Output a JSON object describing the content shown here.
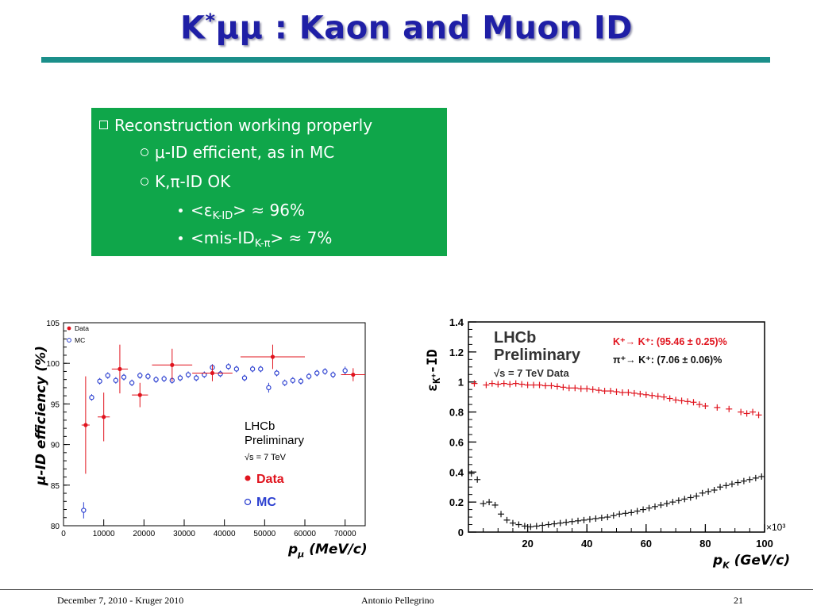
{
  "slide": {
    "title_main": "K",
    "title_sup": "*",
    "title_rest": "μμ : Kaon and Muon ID"
  },
  "bullets": {
    "b1": "Reconstruction working properly",
    "b2": "μ-ID efficient, as in MC",
    "b3": "K,π-ID OK",
    "b4_pre": "<ε",
    "b4_sub": "K-ID",
    "b4_post": "> ≈ 96%",
    "b5_pre": "<mis-ID",
    "b5_sub": "K-π",
    "b5_post": "> ≈ 7%"
  },
  "footer": {
    "left": "December 7, 2010 - Kruger 2010",
    "center": "Antonio Pellegrino",
    "right": "21"
  },
  "chart_data": [
    {
      "type": "scatter",
      "ylabel": "μ-ID efficiency (%)",
      "xlabel_main": "p",
      "xlabel_sub": "μ",
      "xlabel_rest": " (MeV/c)",
      "xlim": [
        0,
        75000
      ],
      "ylim": [
        80,
        105
      ],
      "xticks": [
        0,
        10000,
        20000,
        30000,
        40000,
        50000,
        60000,
        70000
      ],
      "yticks": [
        80,
        85,
        90,
        95,
        100,
        105
      ],
      "legend": [
        "Data",
        "MC"
      ],
      "annotation": [
        "LHCb",
        "Preliminary",
        "√s = 7 TeV"
      ],
      "overlay_legend": [
        "Data",
        "MC"
      ],
      "colors": {
        "Data": "#e0141e",
        "MC": "#2b3fd0"
      },
      "series": [
        {
          "name": "Data",
          "x": [
            5500,
            10000,
            14000,
            19000,
            27000,
            37000,
            52000,
            72000
          ],
          "y": [
            92.4,
            93.4,
            99.3,
            96.1,
            99.8,
            98.8,
            100.8,
            98.6
          ],
          "yerr": [
            6,
            3,
            3,
            1.5,
            2,
            1,
            1.5,
            0.8
          ],
          "xerr": [
            1000,
            1500,
            2000,
            2000,
            5000,
            5000,
            8000,
            3000
          ]
        },
        {
          "name": "MC",
          "x": [
            5000,
            7000,
            9000,
            11000,
            13000,
            15000,
            17000,
            19000,
            21000,
            23000,
            25000,
            27000,
            29000,
            31000,
            33000,
            35000,
            37000,
            39000,
            41000,
            43000,
            45000,
            47000,
            49000,
            51000,
            53000,
            55000,
            57000,
            59000,
            61000,
            63000,
            65000,
            67000,
            70000
          ],
          "y": [
            81.9,
            95.8,
            97.8,
            98.5,
            97.9,
            98.3,
            97.6,
            98.5,
            98.4,
            98.0,
            98.1,
            97.9,
            98.2,
            98.6,
            98.2,
            98.6,
            99.5,
            98.7,
            99.6,
            99.3,
            98.2,
            99.3,
            99.3,
            97.0,
            98.8,
            97.6,
            97.9,
            97.8,
            98.4,
            98.8,
            99.0,
            98.6,
            99.1
          ],
          "yerr": [
            1,
            0.4,
            0.4,
            0.4,
            0.4,
            0.4,
            0.4,
            0.4,
            0.4,
            0.4,
            0.4,
            0.4,
            0.4,
            0.4,
            0.4,
            0.4,
            0.4,
            0.4,
            0.4,
            0.4,
            0.4,
            0.4,
            0.4,
            0.6,
            0.4,
            0.4,
            0.4,
            0.4,
            0.4,
            0.4,
            0.4,
            0.4,
            0.5
          ]
        }
      ]
    },
    {
      "type": "scatter",
      "ylabel_main": "ε",
      "ylabel_sub": "K",
      "ylabel_sup": "+",
      "ylabel_rest": "-ID",
      "xlabel_main": "p",
      "xlabel_sub": "K",
      "xlabel_rest": " (GeV/c)",
      "exponent": "×10³",
      "xlim": [
        0,
        100
      ],
      "ylim": [
        0,
        1.4
      ],
      "xticks": [
        20,
        40,
        60,
        80,
        100
      ],
      "yticks": [
        0,
        0.2,
        0.4,
        0.6,
        0.8,
        1,
        1.2,
        1.4
      ],
      "annotation": [
        "LHCb",
        "Preliminary",
        "√s = 7 TeV Data"
      ],
      "legend": [
        "K⁺→ K⁺: (95.46 ± 0.25)%",
        "π⁺→ K⁺: (7.06 ± 0.06)%"
      ],
      "colors": {
        "kaon": "#e0141e",
        "pion": "#111111"
      },
      "series": [
        {
          "name": "K⁺→ K⁺",
          "x": [
            2,
            6,
            8,
            10,
            12,
            14,
            16,
            18,
            20,
            22,
            24,
            26,
            28,
            30,
            32,
            34,
            36,
            38,
            40,
            42,
            44,
            46,
            48,
            50,
            52,
            54,
            56,
            58,
            60,
            62,
            64,
            66,
            68,
            70,
            72,
            74,
            76,
            78,
            80,
            84,
            88,
            92,
            94,
            96,
            98
          ],
          "y": [
            0.99,
            0.98,
            0.99,
            0.985,
            0.99,
            0.985,
            0.99,
            0.985,
            0.98,
            0.98,
            0.98,
            0.975,
            0.975,
            0.97,
            0.965,
            0.96,
            0.96,
            0.955,
            0.955,
            0.95,
            0.945,
            0.94,
            0.94,
            0.935,
            0.93,
            0.93,
            0.925,
            0.92,
            0.915,
            0.91,
            0.905,
            0.9,
            0.89,
            0.88,
            0.875,
            0.87,
            0.865,
            0.85,
            0.84,
            0.83,
            0.82,
            0.8,
            0.79,
            0.8,
            0.78
          ]
        },
        {
          "name": "π⁺→ K⁺",
          "x": [
            1,
            3,
            5,
            7,
            9,
            11,
            13,
            15,
            17,
            19,
            21,
            23,
            25,
            27,
            29,
            31,
            33,
            35,
            37,
            39,
            41,
            43,
            45,
            47,
            49,
            51,
            53,
            55,
            57,
            59,
            61,
            63,
            65,
            67,
            69,
            71,
            73,
            75,
            77,
            79,
            81,
            83,
            85,
            87,
            89,
            91,
            93,
            95,
            97,
            99
          ],
          "y": [
            0.39,
            0.35,
            0.19,
            0.2,
            0.18,
            0.12,
            0.08,
            0.06,
            0.05,
            0.04,
            0.035,
            0.04,
            0.045,
            0.05,
            0.055,
            0.06,
            0.065,
            0.07,
            0.075,
            0.08,
            0.085,
            0.09,
            0.095,
            0.1,
            0.11,
            0.12,
            0.125,
            0.13,
            0.14,
            0.15,
            0.16,
            0.17,
            0.18,
            0.19,
            0.2,
            0.21,
            0.22,
            0.23,
            0.24,
            0.26,
            0.27,
            0.28,
            0.3,
            0.31,
            0.32,
            0.33,
            0.34,
            0.35,
            0.36,
            0.37
          ]
        }
      ]
    }
  ]
}
